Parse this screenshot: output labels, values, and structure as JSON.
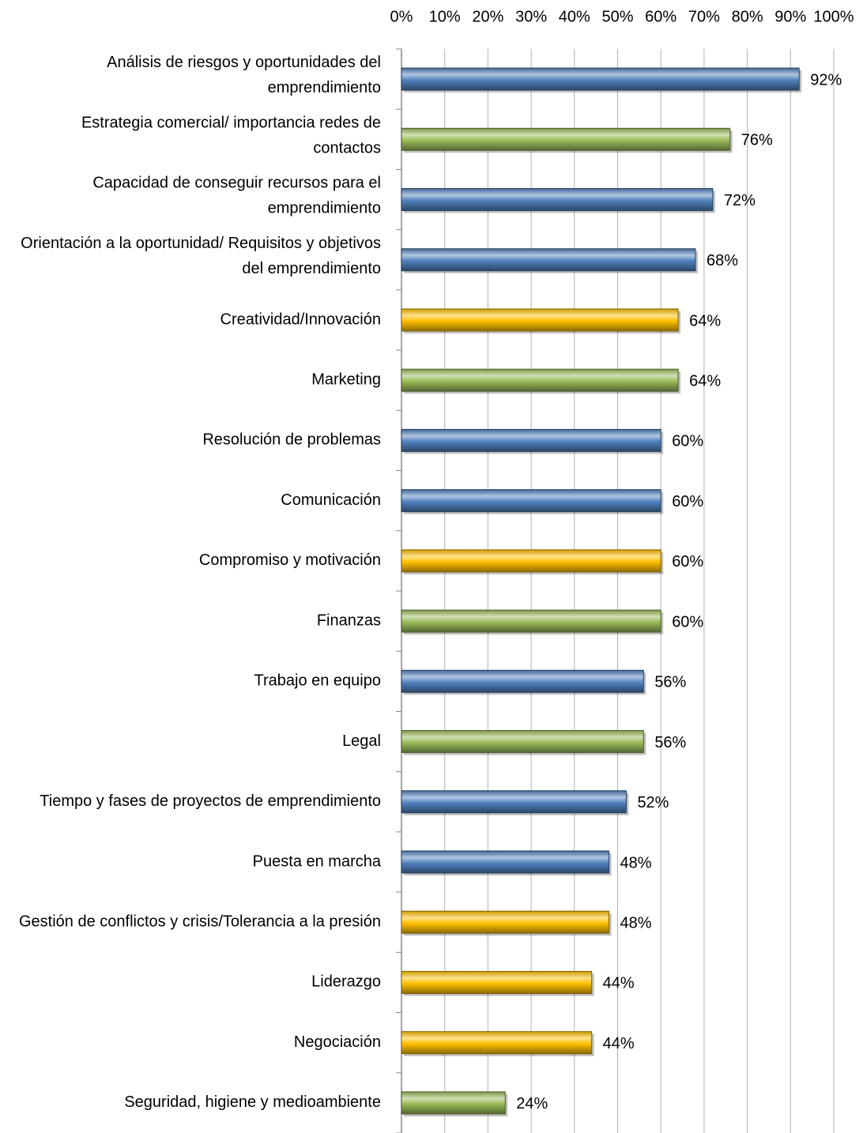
{
  "chart_data": {
    "type": "bar",
    "orientation": "horizontal",
    "categories": [
      "Análisis de riesgos y oportunidades del emprendimiento",
      "Estrategia comercial/ importancia redes de contactos",
      "Capacidad de conseguir recursos para el emprendimiento",
      "Orientación a la oportunidad/ Requisitos y objetivos del emprendimiento",
      "Creatividad/Innovación",
      "Marketing",
      "Resolución de problemas",
      "Comunicación",
      "Compromiso y motivación",
      "Finanzas",
      "Trabajo en equipo",
      "Legal",
      "Tiempo y fases de proyectos de emprendimiento",
      "Puesta en marcha",
      "Gestión de conflictos y crisis/Tolerancia a la presión",
      "Liderazgo",
      "Negociación",
      "Seguridad, higiene y medioambiente"
    ],
    "values": [
      92,
      76,
      72,
      68,
      64,
      64,
      60,
      60,
      60,
      60,
      56,
      56,
      52,
      48,
      48,
      44,
      44,
      24
    ],
    "value_labels": [
      "92%",
      "76%",
      "72%",
      "68%",
      "64%",
      "64%",
      "60%",
      "60%",
      "60%",
      "60%",
      "56%",
      "56%",
      "52%",
      "48%",
      "48%",
      "44%",
      "44%",
      "24%"
    ],
    "colors": [
      "#4f81bd",
      "#9bbb59",
      "#4f81bd",
      "#4f81bd",
      "#ffc000",
      "#9bbb59",
      "#4f81bd",
      "#4f81bd",
      "#ffc000",
      "#9bbb59",
      "#4f81bd",
      "#9bbb59",
      "#4f81bd",
      "#4f81bd",
      "#ffc000",
      "#ffc000",
      "#ffc000",
      "#9bbb59"
    ],
    "xlim": [
      0,
      100
    ],
    "xticks": [
      {
        "value": 0,
        "label": "0%"
      },
      {
        "value": 10,
        "label": "10%"
      },
      {
        "value": 20,
        "label": "20%"
      },
      {
        "value": 30,
        "label": "30%"
      },
      {
        "value": 40,
        "label": "40%"
      },
      {
        "value": 50,
        "label": "50%"
      },
      {
        "value": 60,
        "label": "60%"
      },
      {
        "value": 70,
        "label": "70%"
      },
      {
        "value": 80,
        "label": "80%"
      },
      {
        "value": 90,
        "label": "90%"
      },
      {
        "value": 100,
        "label": "100%"
      }
    ],
    "grid": true
  }
}
